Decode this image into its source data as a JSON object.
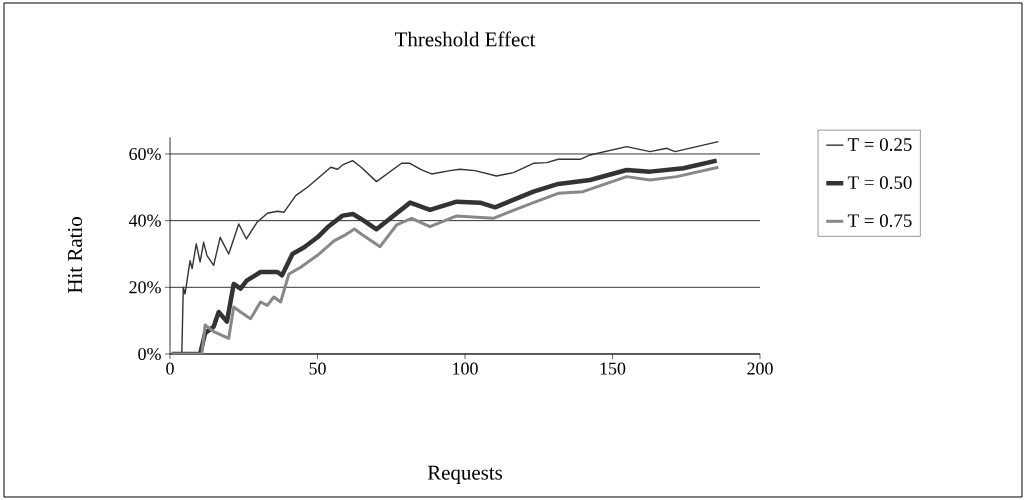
{
  "chart_data": {
    "type": "line",
    "title": "Threshold Effect",
    "xlabel": "Requests",
    "ylabel": "Hit Ratio",
    "xlim": [
      0,
      200
    ],
    "ylim": [
      0,
      65
    ],
    "xticks": [
      0,
      50,
      100,
      150,
      200
    ],
    "yticks": [
      {
        "value": 0,
        "label": "0%"
      },
      {
        "value": 20,
        "label": "20%"
      },
      {
        "value": 40,
        "label": "40%"
      },
      {
        "value": 60,
        "label": "60%"
      }
    ],
    "grid": "y",
    "legend": "right",
    "series": [
      {
        "name": "T = 0.25",
        "color": "#333333",
        "x": [
          0.6,
          4,
          4.5,
          5.1,
          6.8,
          7.5,
          8.9,
          10.2,
          11.4,
          12.5,
          14.8,
          17,
          19.9,
          23.3,
          25.9,
          29.5,
          33,
          36.4,
          38.6,
          42.6,
          46.6,
          54.5,
          56.8,
          58.5,
          61.9,
          64.8,
          70,
          78.5,
          81.3,
          85.3,
          88.7,
          94.9,
          98.3,
          103.4,
          110.7,
          116.4,
          123.2,
          127.7,
          131.6,
          139,
          142.4,
          154.8,
          162.7,
          168.4,
          171.2,
          185.9
        ],
        "values": [
          0,
          0,
          20,
          18,
          28,
          25.6,
          33,
          27.6,
          33.5,
          29.6,
          26.6,
          35,
          30,
          39,
          34.5,
          39.5,
          42.2,
          42.8,
          42.5,
          47.5,
          50,
          56,
          55.4,
          56.7,
          58,
          56,
          51.7,
          57.2,
          57.2,
          55.2,
          54,
          55,
          55.4,
          55,
          53.4,
          54.4,
          57.2,
          57.4,
          58.4,
          58.4,
          59.7,
          62.2,
          60.7,
          61.7,
          60.7,
          63.7
        ]
      },
      {
        "name": "T = 0.50",
        "color": "#333333",
        "x": [
          0.6,
          10.2,
          11.9,
          14.8,
          16.5,
          19.3,
          21.6,
          23.9,
          26,
          30.7,
          36.4,
          38,
          41.5,
          45.5,
          50,
          53.4,
          58.5,
          62,
          64.8,
          70,
          81.4,
          88.1,
          97.2,
          105.1,
          110.2,
          123.2,
          131.6,
          142.4,
          154.8,
          162.7,
          174,
          185.3
        ],
        "values": [
          0,
          0,
          6.2,
          8.2,
          12.6,
          9.7,
          21,
          19.6,
          22,
          24.6,
          24.6,
          23.6,
          30,
          32,
          35,
          38,
          41.5,
          42,
          40.5,
          37.4,
          45.4,
          43.2,
          45.7,
          45.4,
          44,
          48.7,
          51,
          52.2,
          55.2,
          54.7,
          55.7,
          58
        ]
      },
      {
        "name": "T = 0.75",
        "color": "#888888",
        "x": [
          0.6,
          10.8,
          11.9,
          14.8,
          19.9,
          21.6,
          23.9,
          27.3,
          30.7,
          33,
          35.2,
          37.5,
          40.3,
          44.3,
          50,
          55.7,
          59,
          62.5,
          64.8,
          71.2,
          76.8,
          81.9,
          88.1,
          97.2,
          109.6,
          115.3,
          123.2,
          131.6,
          140,
          154.8,
          162.7,
          171.8,
          185.9
        ],
        "values": [
          0,
          0,
          8.7,
          6.7,
          4.7,
          14.1,
          12.6,
          10.6,
          15.6,
          14.6,
          17.1,
          15.6,
          24,
          26,
          29.6,
          34,
          35.5,
          37.5,
          36,
          32.2,
          38.7,
          40.7,
          38.2,
          41.4,
          40.7,
          42.7,
          45.4,
          48.2,
          48.7,
          53.2,
          52.2,
          53.2,
          56
        ]
      }
    ]
  }
}
